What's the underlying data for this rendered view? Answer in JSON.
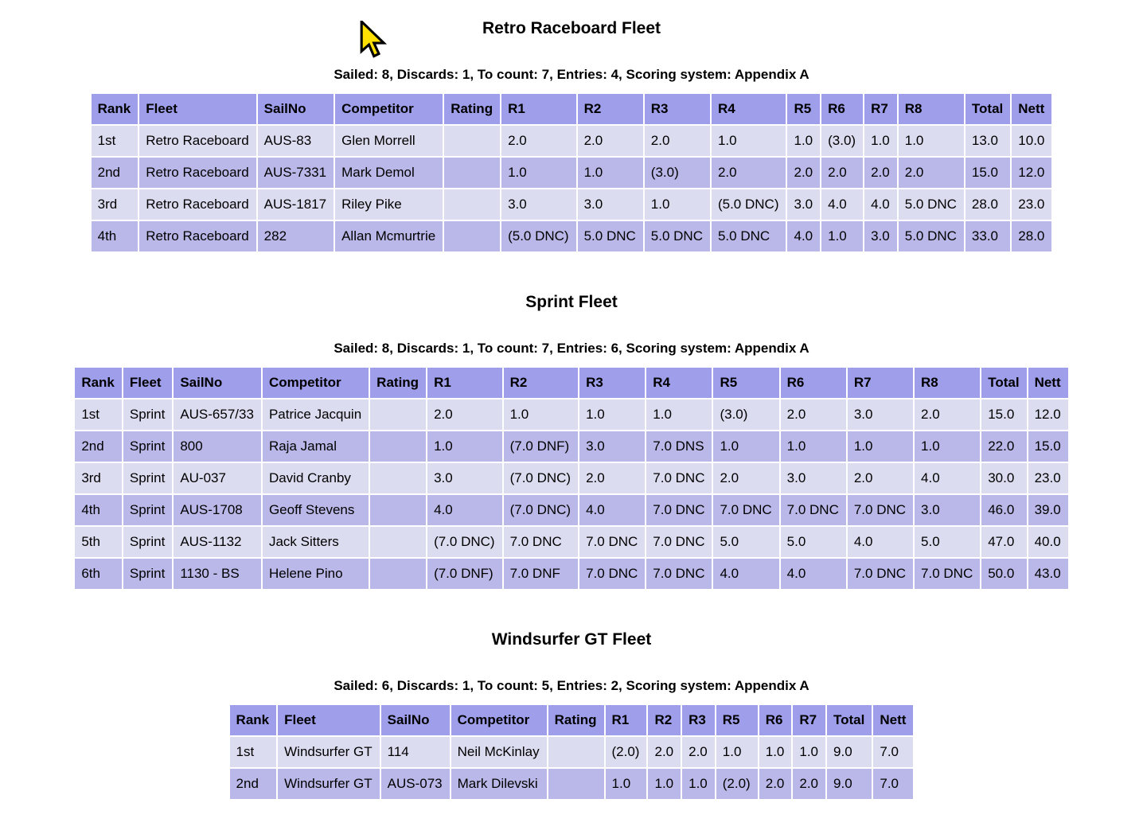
{
  "colors": {
    "header_bg": "#9e9eeb",
    "row_light": "#dcdcf0",
    "row_dark": "#b9b8e8",
    "cursor_fill": "#ffe000",
    "cursor_outline": "#000000"
  },
  "icons": {
    "mouse_cursor": "yellow-arrow-pointer"
  },
  "fleets": [
    {
      "title": "Retro Raceboard Fleet",
      "summary": "Sailed: 8, Discards: 1, To count: 7, Entries: 4, Scoring system: Appendix A",
      "columns": [
        "Rank",
        "Fleet",
        "SailNo",
        "Competitor",
        "Rating",
        "R1",
        "R2",
        "R3",
        "R4",
        "R5",
        "R6",
        "R7",
        "R8",
        "Total",
        "Nett"
      ],
      "rows": [
        [
          "1st",
          "Retro Raceboard",
          "AUS-83",
          "Glen Morrell",
          "",
          "2.0",
          "2.0",
          "2.0",
          "1.0",
          "1.0",
          "(3.0)",
          "1.0",
          "1.0",
          "13.0",
          "10.0"
        ],
        [
          "2nd",
          "Retro Raceboard",
          "AUS-7331",
          "Mark Demol",
          "",
          "1.0",
          "1.0",
          "(3.0)",
          "2.0",
          "2.0",
          "2.0",
          "2.0",
          "2.0",
          "15.0",
          "12.0"
        ],
        [
          "3rd",
          "Retro Raceboard",
          "AUS-1817",
          "Riley Pike",
          "",
          "3.0",
          "3.0",
          "1.0",
          "(5.0 DNC)",
          "3.0",
          "4.0",
          "4.0",
          "5.0 DNC",
          "28.0",
          "23.0"
        ],
        [
          "4th",
          "Retro Raceboard",
          "282",
          "Allan Mcmurtrie",
          "",
          "(5.0 DNC)",
          "5.0 DNC",
          "5.0 DNC",
          "5.0 DNC",
          "4.0",
          "1.0",
          "3.0",
          "5.0 DNC",
          "33.0",
          "28.0"
        ]
      ]
    },
    {
      "title": "Sprint Fleet",
      "summary": "Sailed: 8, Discards: 1, To count: 7, Entries: 6, Scoring system: Appendix A",
      "columns": [
        "Rank",
        "Fleet",
        "SailNo",
        "Competitor",
        "Rating",
        "R1",
        "R2",
        "R3",
        "R4",
        "R5",
        "R6",
        "R7",
        "R8",
        "Total",
        "Nett"
      ],
      "rows": [
        [
          "1st",
          "Sprint",
          "AUS-657/33",
          "Patrice Jacquin",
          "",
          "2.0",
          "1.0",
          "1.0",
          "1.0",
          "(3.0)",
          "2.0",
          "3.0",
          "2.0",
          "15.0",
          "12.0"
        ],
        [
          "2nd",
          "Sprint",
          "800",
          "Raja Jamal",
          "",
          "1.0",
          "(7.0 DNF)",
          "3.0",
          "7.0 DNS",
          "1.0",
          "1.0",
          "1.0",
          "1.0",
          "22.0",
          "15.0"
        ],
        [
          "3rd",
          "Sprint",
          "AU-037",
          "David Cranby",
          "",
          "3.0",
          "(7.0 DNC)",
          "2.0",
          "7.0 DNC",
          "2.0",
          "3.0",
          "2.0",
          "4.0",
          "30.0",
          "23.0"
        ],
        [
          "4th",
          "Sprint",
          "AUS-1708",
          "Geoff Stevens",
          "",
          "4.0",
          "(7.0 DNC)",
          "4.0",
          "7.0 DNC",
          "7.0 DNC",
          "7.0 DNC",
          "7.0 DNC",
          "3.0",
          "46.0",
          "39.0"
        ],
        [
          "5th",
          "Sprint",
          "AUS-1132",
          "Jack Sitters",
          "",
          "(7.0 DNC)",
          "7.0 DNC",
          "7.0 DNC",
          "7.0 DNC",
          "5.0",
          "5.0",
          "4.0",
          "5.0",
          "47.0",
          "40.0"
        ],
        [
          "6th",
          "Sprint",
          "1130 - BS",
          "Helene Pino",
          "",
          "(7.0 DNF)",
          "7.0 DNF",
          "7.0 DNC",
          "7.0 DNC",
          "4.0",
          "4.0",
          "7.0 DNC",
          "7.0 DNC",
          "50.0",
          "43.0"
        ]
      ]
    },
    {
      "title": "Windsurfer GT Fleet",
      "summary": "Sailed: 6, Discards: 1, To count: 5, Entries: 2, Scoring system: Appendix A",
      "columns": [
        "Rank",
        "Fleet",
        "SailNo",
        "Competitor",
        "Rating",
        "R1",
        "R2",
        "R3",
        "R5",
        "R6",
        "R7",
        "Total",
        "Nett"
      ],
      "rows": [
        [
          "1st",
          "Windsurfer GT",
          "114",
          "Neil McKinlay",
          "",
          "(2.0)",
          "2.0",
          "2.0",
          "1.0",
          "1.0",
          "1.0",
          "9.0",
          "7.0"
        ],
        [
          "2nd",
          "Windsurfer GT",
          "AUS-073",
          "Mark Dilevski",
          "",
          "1.0",
          "1.0",
          "1.0",
          "(2.0)",
          "2.0",
          "2.0",
          "9.0",
          "7.0"
        ]
      ]
    }
  ]
}
